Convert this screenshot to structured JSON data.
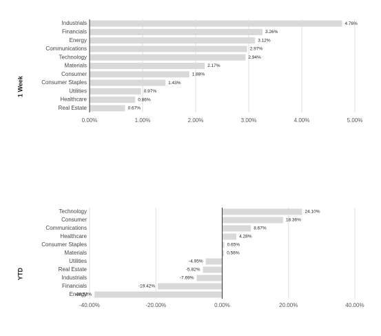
{
  "chart_data": [
    {
      "type": "bar",
      "orientation": "horizontal",
      "y_label": "1 Week",
      "categories": [
        "Industrials",
        "Financials",
        "Energy",
        "Communications",
        "Technology",
        "Materials",
        "Consumer",
        "Consumer Staples",
        "Utilities",
        "Healthcare",
        "Real Estate"
      ],
      "values": [
        4.76,
        3.26,
        3.12,
        2.97,
        2.94,
        2.17,
        1.88,
        1.43,
        0.97,
        0.86,
        0.67
      ],
      "value_labels": [
        "4.76%",
        "3.26%",
        "3.12%",
        "2.97%",
        "2.94%",
        "2.17%",
        "1.88%",
        "1.43%",
        "0.97%",
        "0.86%",
        "0.67%"
      ],
      "color": "#d9d9d9",
      "grid": true,
      "xlim": [
        0,
        5
      ],
      "xticks": [
        {
          "value": 0,
          "label": "0.00%"
        },
        {
          "value": 1,
          "label": "1.00%"
        },
        {
          "value": 2,
          "label": "2.00%"
        },
        {
          "value": 3,
          "label": "3.00%"
        },
        {
          "value": 4,
          "label": "4.00%"
        },
        {
          "value": 5,
          "label": "5.00%"
        }
      ]
    },
    {
      "type": "bar",
      "orientation": "horizontal",
      "y_label": "YTD",
      "categories": [
        "Technology",
        "Consumer",
        "Communications",
        "Healthcare",
        "Consumer Staples",
        "Materials",
        "Utilities",
        "Real Estate",
        "Industrials",
        "Financials",
        "Energy"
      ],
      "values": [
        24.1,
        18.36,
        8.67,
        4.28,
        0.65,
        0.56,
        -4.95,
        -5.82,
        -7.69,
        -19.42,
        -38.53
      ],
      "value_labels": [
        "24.10%",
        "18.36%",
        "8.67%",
        "4.28%",
        "0.65%",
        "0.56%",
        "-4.95%",
        "-5.82%",
        "-7.69%",
        "-19.42%",
        "-38.53%"
      ],
      "color": "#d9d9d9",
      "grid": true,
      "xlim": [
        -40,
        40
      ],
      "xticks": [
        {
          "value": -40,
          "label": "-40.00%"
        },
        {
          "value": -20,
          "label": "-20.00%"
        },
        {
          "value": 0,
          "label": "0.00%"
        },
        {
          "value": 20,
          "label": "20.00%"
        },
        {
          "value": 40,
          "label": "40.00%"
        }
      ]
    }
  ]
}
